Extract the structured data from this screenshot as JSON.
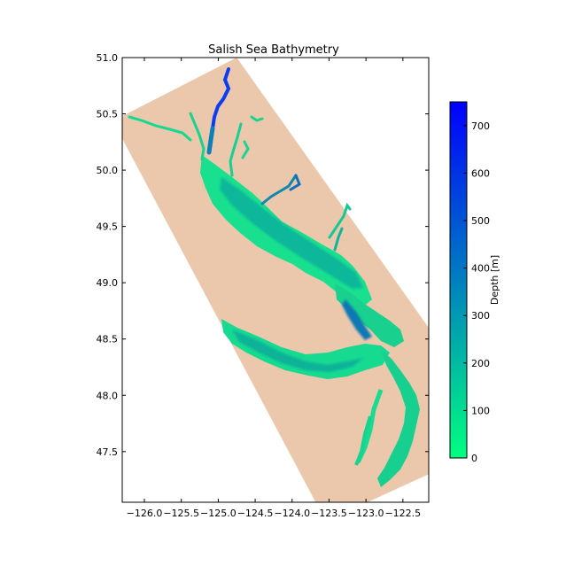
{
  "chart_data": {
    "type": "heatmap",
    "title": "Salish Sea Bathymetry",
    "xlabel": "",
    "ylabel": "",
    "xlim": [
      -126.3,
      -122.15
    ],
    "ylim": [
      47.05,
      51.0
    ],
    "x_ticks": [
      -126.0,
      -125.5,
      -125.0,
      -124.5,
      -124.0,
      -123.5,
      -123.0,
      -122.5
    ],
    "x_tick_labels": [
      "−126.0",
      "−125.5",
      "−125.0",
      "−124.5",
      "−124.0",
      "−123.5",
      "−123.0",
      "−122.5"
    ],
    "y_ticks": [
      47.5,
      48.0,
      48.5,
      49.0,
      49.5,
      50.0,
      50.5,
      51.0
    ],
    "y_tick_labels": [
      "47.5",
      "48.0",
      "48.5",
      "49.0",
      "49.5",
      "50.0",
      "50.5",
      "51.0"
    ],
    "grid": false,
    "domain_polygon_lonlat": [
      [
        -126.3,
        50.48
      ],
      [
        -124.75,
        51.0
      ],
      [
        -122.15,
        48.6
      ],
      [
        -122.15,
        47.3
      ],
      [
        -122.98,
        47.05
      ],
      [
        -123.68,
        47.05
      ],
      [
        -126.3,
        50.28
      ]
    ],
    "land_color": "#ebc7ab",
    "colorbar": {
      "label": "Depth [m]",
      "min": 0,
      "max": 750,
      "ticks": [
        0,
        100,
        200,
        300,
        400,
        500,
        600,
        700
      ],
      "tick_labels": [
        "0",
        "100",
        "200",
        "300",
        "400",
        "500",
        "600",
        "700"
      ],
      "colormap": "winter_r",
      "color_at_min": "#00ff80",
      "color_at_max": "#0000ff"
    }
  }
}
